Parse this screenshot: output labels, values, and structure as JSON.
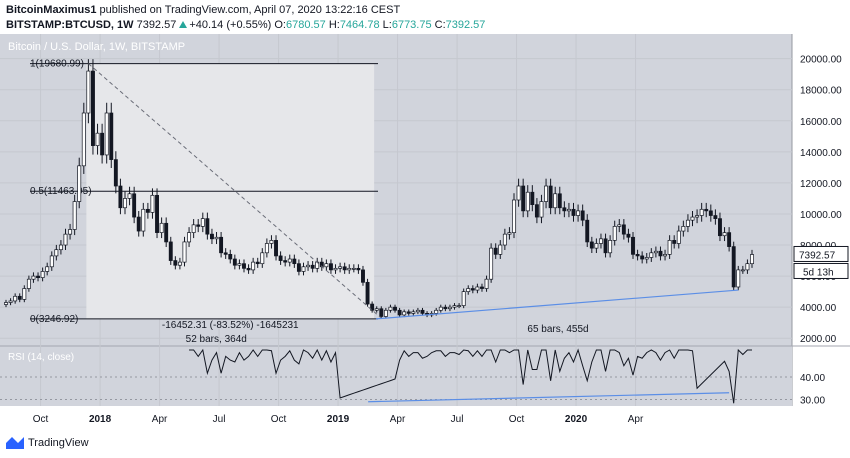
{
  "header": {
    "author": "BitcoinMaximus1",
    "published_text": " published on TradingView.com, April 07, 2020 13:22:16 CEST",
    "symbol": "BITSTAMP:BTCUSD, 1W",
    "price": "7392.57",
    "change": "+40.14 (+0.55%)",
    "o_label": "O:",
    "o_value": "6780.57",
    "h_label": "H:",
    "h_value": "7464.78",
    "l_label": "L:",
    "l_value": "6773.75",
    "c_label": "C:",
    "c_value": "7392.57"
  },
  "chart_data": {
    "type": "candlestick",
    "title": "Bitcoin / U.S. Dollar, 1W, BITSTAMP",
    "y_axis_ticks": [
      "20000.00",
      "18000.00",
      "16000.00",
      "14000.00",
      "12000.00",
      "10000.00",
      "8000.00",
      "6000.00",
      "4000.00",
      "2000.00"
    ],
    "ylim": [
      1500,
      21200
    ],
    "x_axis_ticks": [
      "Oct",
      "2018",
      "Apr",
      "Jul",
      "Oct",
      "2019",
      "Apr",
      "Jul",
      "Oct",
      "2020",
      "Apr"
    ],
    "x_range": [
      "2017-09",
      "2020-04"
    ],
    "current_price_label": "7392.57",
    "countdown_label": "5d 13h",
    "fib_levels": [
      {
        "label": "1(19680.99)",
        "value": 19680.99
      },
      {
        "label": "0.5(11463.95)",
        "value": 11463.95
      },
      {
        "label": "0(3246.92)",
        "value": 3246.92
      }
    ],
    "measure_label": "-16452.31 (-83.52%) -1645231",
    "range_label_1": "52 bars, 364d",
    "range_label_2": "65 bars, 455d",
    "weekly_closes": [
      4300,
      4400,
      4700,
      4500,
      5200,
      5800,
      6000,
      5900,
      6300,
      6600,
      7300,
      7700,
      8000,
      8700,
      9000,
      10800,
      13100,
      16500,
      19200,
      14400,
      15200,
      13800,
      16500,
      13500,
      11800,
      10400,
      11000,
      11300,
      9800,
      8900,
      10300,
      10100,
      11200,
      8800,
      9400,
      8200,
      7000,
      6700,
      6900,
      8200,
      8800,
      9300,
      9200,
      9700,
      8700,
      8400,
      8500,
      7500,
      7400,
      7100,
      6700,
      6800,
      6500,
      6400,
      6900,
      6800,
      7500,
      8100,
      8300,
      7300,
      7000,
      6900,
      7100,
      6800,
      6300,
      6600,
      6700,
      6500,
      6900,
      6600,
      6800,
      6400,
      6500,
      6600,
      6400,
      6500,
      6500,
      6400,
      5600,
      4200,
      3800,
      3900,
      3400,
      3800,
      4000,
      3800,
      3500,
      3700,
      3600,
      3700,
      3800,
      3600,
      3500,
      3600,
      3800,
      4000,
      3900,
      4000,
      4100,
      4100,
      5000,
      5200,
      5100,
      5300,
      5200,
      5800,
      7800,
      7400,
      8000,
      8700,
      8800,
      10900,
      11800,
      10200,
      11400,
      10600,
      9800,
      10800,
      11800,
      10400,
      11300,
      10400,
      10200,
      10300,
      9900,
      10200,
      9600,
      8200,
      7800,
      8100,
      8400,
      7500,
      8300,
      9200,
      9300,
      8700,
      8500,
      7400,
      7300,
      7100,
      7200,
      7500,
      7600,
      7300,
      7400,
      8300,
      8100,
      8900,
      9200,
      9600,
      9800,
      9900,
      10300,
      10200,
      9900,
      9700,
      8600,
      8800,
      7900,
      5300,
      6400,
      6400,
      6800,
      7390
    ]
  },
  "rsi": {
    "label": "RSI (14, close)",
    "ticks": [
      "40.00",
      "30.00"
    ],
    "ylim": [
      28,
      52
    ]
  },
  "footer": {
    "brand": "TradingView"
  }
}
